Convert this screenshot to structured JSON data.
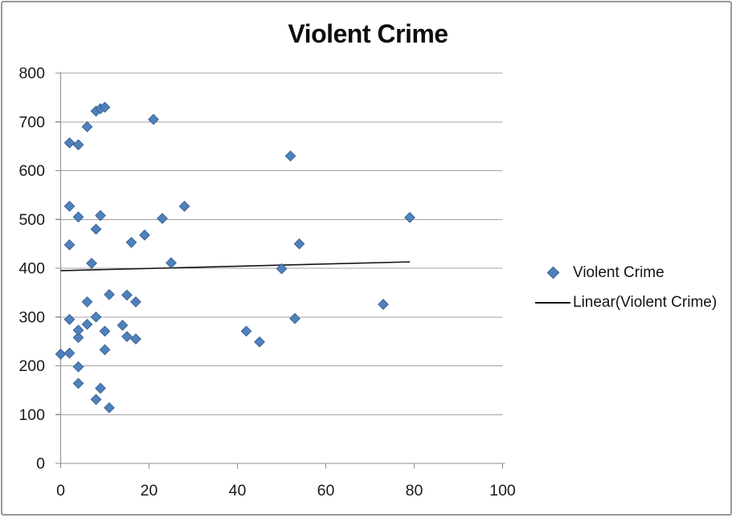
{
  "window": {
    "background": "#ffffff",
    "border_color": "#979797"
  },
  "chart_data": {
    "type": "scatter",
    "title": "Violent Crime",
    "xlabel": "",
    "ylabel": "",
    "x_axis": {
      "min": 0,
      "max": 100,
      "ticks": [
        0,
        20,
        40,
        60,
        80,
        100
      ]
    },
    "y_axis": {
      "min": 0,
      "max": 800,
      "ticks": [
        0,
        100,
        200,
        300,
        400,
        500,
        600,
        700,
        800
      ]
    },
    "grid": "horizontal",
    "colors": {
      "marker_fill": "#4f81bd",
      "marker_stroke": "#3c6595",
      "trendline": "#141414",
      "axis": "#8c8c8c",
      "gridline": "#a3a3a3",
      "tick_text": "#1a1a1a"
    },
    "series": [
      {
        "name": "Violent Crime",
        "marker": "diamond",
        "points": [
          [
            0,
            224
          ],
          [
            2,
            226
          ],
          [
            2,
            295
          ],
          [
            2,
            448
          ],
          [
            2,
            527
          ],
          [
            2,
            657
          ],
          [
            4,
            164
          ],
          [
            4,
            198
          ],
          [
            4,
            258
          ],
          [
            4,
            273
          ],
          [
            4,
            505
          ],
          [
            4,
            653
          ],
          [
            6,
            285
          ],
          [
            6,
            331
          ],
          [
            6,
            690
          ],
          [
            7,
            410
          ],
          [
            8,
            131
          ],
          [
            8,
            300
          ],
          [
            8,
            480
          ],
          [
            8,
            722
          ],
          [
            9,
            154
          ],
          [
            9,
            508
          ],
          [
            9,
            727
          ],
          [
            10,
            233
          ],
          [
            10,
            271
          ],
          [
            10,
            730
          ],
          [
            11,
            114
          ],
          [
            11,
            346
          ],
          [
            14,
            283
          ],
          [
            15,
            260
          ],
          [
            15,
            345
          ],
          [
            16,
            453
          ],
          [
            17,
            255
          ],
          [
            17,
            331
          ],
          [
            19,
            468
          ],
          [
            21,
            705
          ],
          [
            23,
            502
          ],
          [
            25,
            411
          ],
          [
            28,
            527
          ],
          [
            42,
            271
          ],
          [
            45,
            249
          ],
          [
            50,
            399
          ],
          [
            52,
            630
          ],
          [
            53,
            297
          ],
          [
            54,
            450
          ],
          [
            73,
            326
          ],
          [
            79,
            504
          ]
        ]
      }
    ],
    "trendline": {
      "name": "Linear(Violent Crime)",
      "start": [
        0,
        395
      ],
      "end": [
        79,
        413
      ]
    },
    "legend": {
      "position": "right",
      "entries": [
        {
          "label": "Violent Crime",
          "swatch": "diamond"
        },
        {
          "label": "Linear(Violent Crime)",
          "swatch": "line"
        }
      ]
    }
  }
}
